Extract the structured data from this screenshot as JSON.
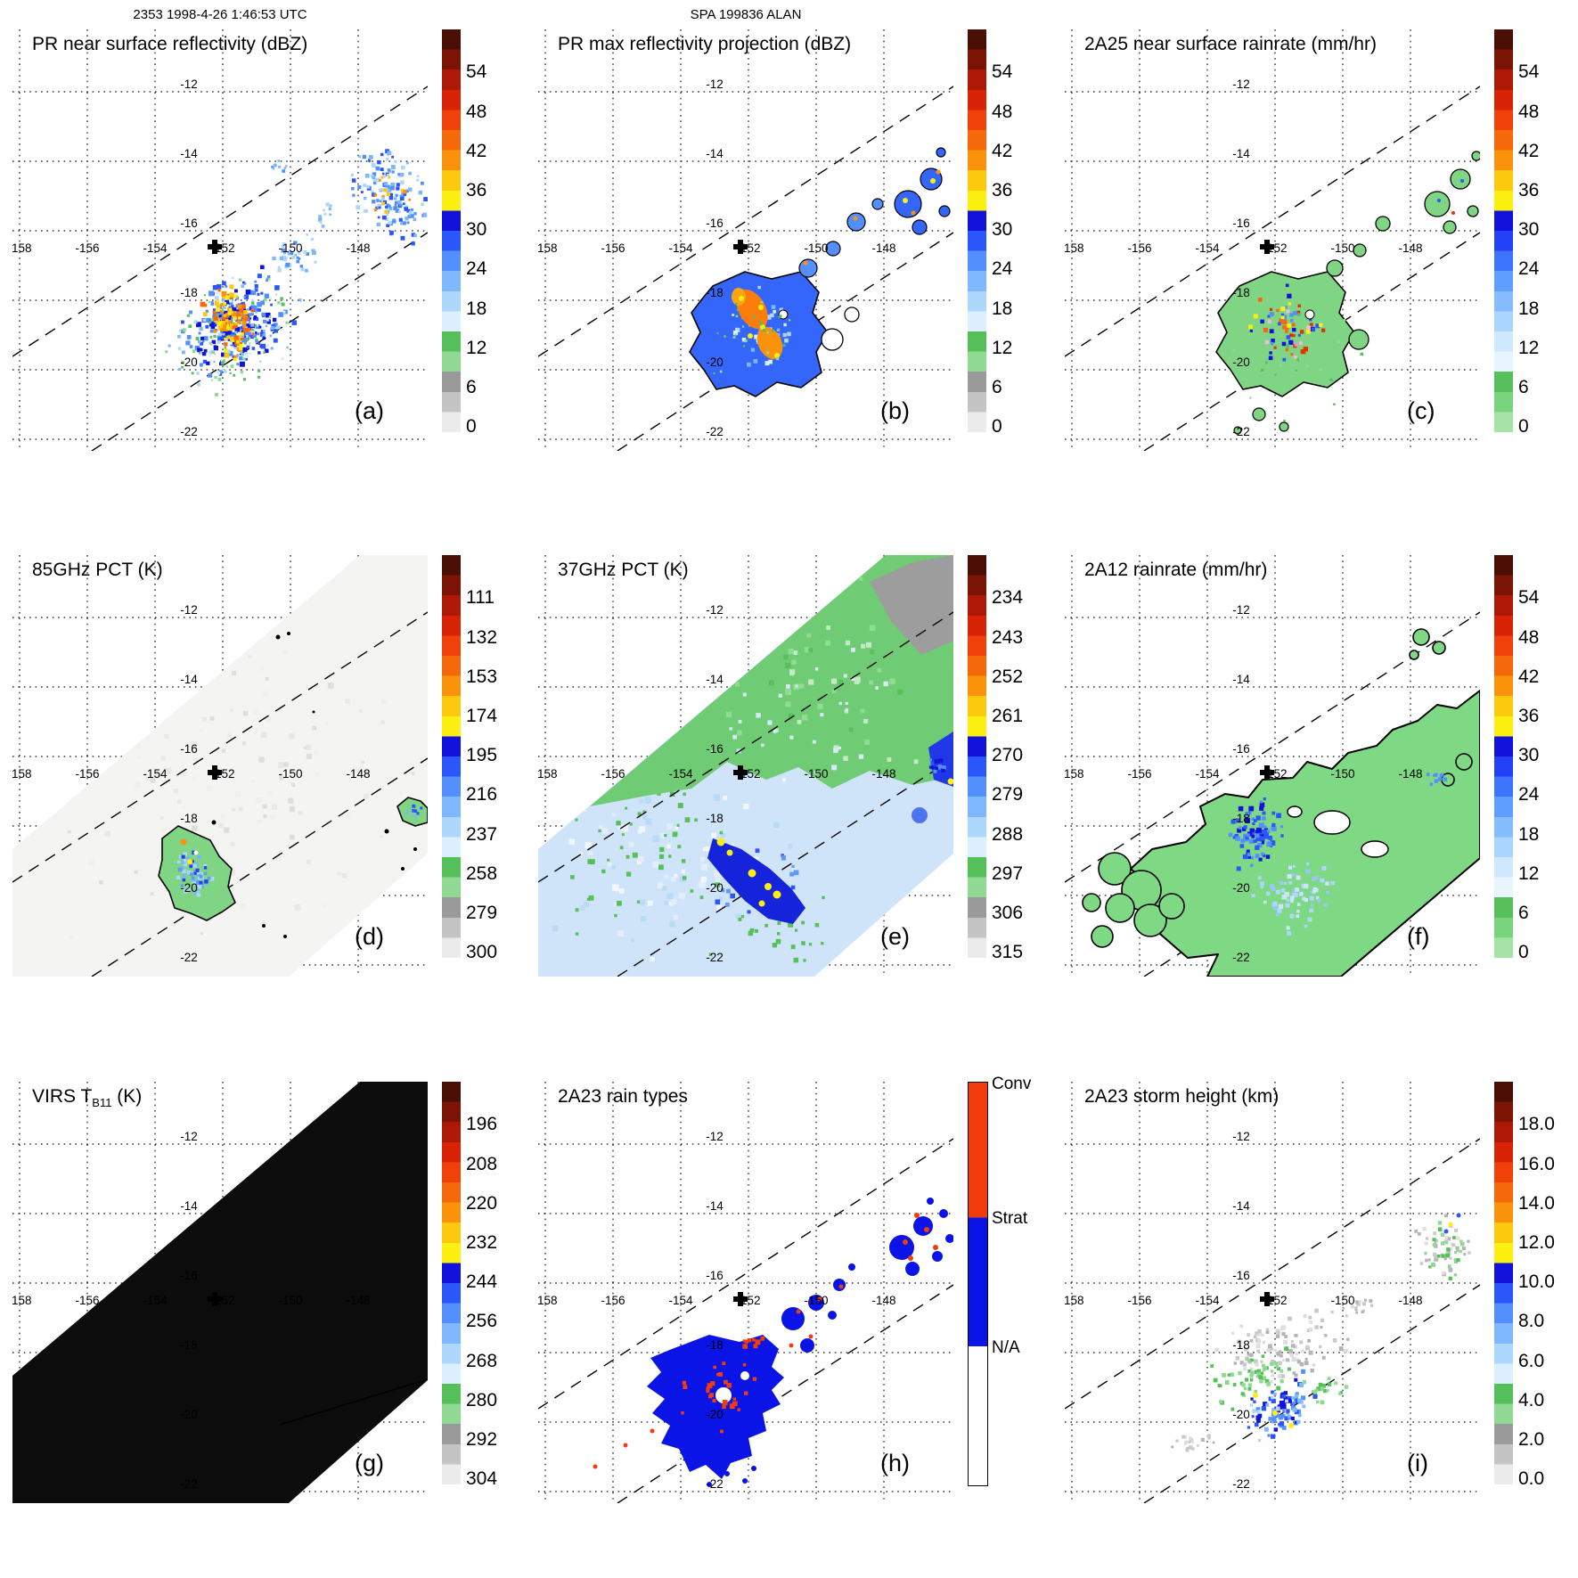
{
  "header": {
    "left_caption": "2353 1998-4-26 1:46:53 UTC",
    "center_caption": "SPA 199836 ALAN"
  },
  "axes": {
    "lon_labels": [
      "-158",
      "-156",
      "-154",
      "-152",
      "-150",
      "-148"
    ],
    "lat_labels": [
      "-12",
      "-14",
      "-16",
      "-18",
      "-20",
      "-22"
    ]
  },
  "palettes": {
    "refl_gray": [
      "#4a0e04",
      "#7c1405",
      "#ad1807",
      "#d92307",
      "#ef4109",
      "#f6690a",
      "#fb920c",
      "#fdc90f",
      "#fdf011",
      "#1113dc",
      "#2b57fa",
      "#548ffe",
      "#7fb8fe",
      "#aed7fe",
      "#dcefff",
      "#55bf59",
      "#8fd992",
      "#9a9a9a",
      "#c4c4c4",
      "#ececec"
    ],
    "rain_green": [
      "#4a0e04",
      "#7c1405",
      "#ad1807",
      "#d92307",
      "#ef4109",
      "#f6690a",
      "#fb920c",
      "#fdc90f",
      "#fdf011",
      "#1113dc",
      "#2342f8",
      "#3d74fe",
      "#5f9dfe",
      "#84bcfe",
      "#a9d6fe",
      "#cfe8fe",
      "#e8f4ff",
      "#57c05b",
      "#79d47d",
      "#a5e3a7"
    ]
  },
  "panels": [
    {
      "id": "a",
      "label": "(a)",
      "title": "PR near surface reflectivity (dBZ)",
      "colorbar": {
        "palette": "refl_gray",
        "ticks": [
          "54",
          "48",
          "42",
          "36",
          "30",
          "24",
          "18",
          "12",
          "6",
          "0"
        ]
      }
    },
    {
      "id": "b",
      "label": "(b)",
      "title": "PR max reflectivity projection (dBZ)",
      "colorbar": {
        "palette": "refl_gray",
        "ticks": [
          "54",
          "48",
          "42",
          "36",
          "30",
          "24",
          "18",
          "12",
          "6",
          "0"
        ]
      }
    },
    {
      "id": "c",
      "label": "(c)",
      "title": "2A25 near surface rainrate (mm/hr)",
      "colorbar": {
        "palette": "rain_green",
        "ticks": [
          "54",
          "48",
          "42",
          "36",
          "30",
          "24",
          "18",
          "12",
          "6",
          "0"
        ]
      }
    },
    {
      "id": "d",
      "label": "(d)",
      "title": "85GHz PCT (K)",
      "colorbar": {
        "palette": "refl_gray",
        "ticks": [
          "111",
          "132",
          "153",
          "174",
          "195",
          "216",
          "237",
          "258",
          "279",
          "300"
        ]
      }
    },
    {
      "id": "e",
      "label": "(e)",
      "title": "37GHz PCT (K)",
      "colorbar": {
        "palette": "refl_gray",
        "ticks": [
          "234",
          "243",
          "252",
          "261",
          "270",
          "279",
          "288",
          "297",
          "306",
          "315"
        ]
      }
    },
    {
      "id": "f",
      "label": "(f)",
      "title": "2A12 rainrate (mm/hr)",
      "colorbar": {
        "palette": "rain_green",
        "ticks": [
          "54",
          "48",
          "42",
          "36",
          "30",
          "24",
          "18",
          "12",
          "6",
          "0"
        ]
      }
    },
    {
      "id": "g",
      "label": "(g)",
      "title_pre": "VIRS T",
      "title_sub": "B11",
      "title_post": " (K)",
      "colorbar": {
        "palette": "refl_gray",
        "ticks": [
          "196",
          "208",
          "220",
          "232",
          "244",
          "256",
          "268",
          "280",
          "292",
          "304"
        ]
      }
    },
    {
      "id": "h",
      "label": "(h)",
      "title": "2A23 rain types",
      "colorbar": {
        "categories": [
          {
            "label": "Conv",
            "color": "#f23c0e",
            "frac": 0.335
          },
          {
            "label": "Strat",
            "color": "#0a14e6",
            "frac": 0.32
          },
          {
            "label": "N/A",
            "color": "#ffffff",
            "frac": 0.345
          }
        ]
      }
    },
    {
      "id": "i",
      "label": "(i)",
      "title": "2A23 storm height (km)",
      "colorbar": {
        "palette": "refl_gray",
        "ticks": [
          "18.0",
          "16.0",
          "14.0",
          "12.0",
          "10.0",
          "8.0",
          "6.0",
          "4.0",
          "2.0",
          "0.0"
        ]
      }
    }
  ],
  "chart_data": [
    {
      "panel": "a",
      "type": "heatmap",
      "title": "PR near surface reflectivity (dBZ)",
      "units": "dBZ",
      "colorbar_ticks": [
        54,
        48,
        42,
        36,
        30,
        24,
        18,
        12,
        6,
        0
      ],
      "lon_ticks": [
        -158,
        -156,
        -154,
        -152,
        -150,
        -148
      ],
      "lat_ticks": [
        -12,
        -14,
        -16,
        -18,
        -20,
        -22
      ],
      "features": "scattered echo cells in SW-NE PR swath between dashed edges; main cell cluster near -151.5,-18.3 with 36-48 dBZ orange/yellow cores in blue 24-33 dBZ field; secondary speckle field near -148,-15.5; bold plus marker near -152.3,-16.4"
    },
    {
      "panel": "b",
      "type": "heatmap",
      "title": "PR max reflectivity projection (dBZ)",
      "units": "dBZ",
      "colorbar_ticks": [
        54,
        48,
        42,
        36,
        30,
        24,
        18,
        12,
        6,
        0
      ],
      "lon_ticks": [
        -158,
        -156,
        -154,
        -152,
        -150,
        -148
      ],
      "lat_ticks": [
        -12,
        -14,
        -16,
        -18,
        -20,
        -22
      ],
      "features": "same storm as (a) but contiguous black-outlined echo region with large 39-48 dBZ orange core near -151.5,-18.3; outlined cell chain toward -148,-15.5"
    },
    {
      "panel": "c",
      "type": "heatmap",
      "title": "2A25 near surface rainrate (mm/hr)",
      "units": "mm/hr",
      "colorbar_ticks": [
        54,
        48,
        42,
        36,
        30,
        24,
        18,
        12,
        6,
        0
      ],
      "lon_ticks": [
        -158,
        -156,
        -154,
        -152,
        -150,
        -148
      ],
      "lat_ticks": [
        -12,
        -14,
        -16,
        -18,
        -20,
        -22
      ],
      "features": "black-outlined light-rain (green <8 mm/hr) area matching (b) with embedded heavy-rain pixels (blue 12-28, red/orange >36 mm/hr); outlined green islands near -148,-15.5"
    },
    {
      "panel": "d",
      "type": "heatmap",
      "title": "85GHz PCT (K)",
      "units": "K",
      "colorbar_ticks": [
        111,
        132,
        153,
        174,
        195,
        216,
        237,
        258,
        279,
        300
      ],
      "lon_ticks": [
        -158,
        -156,
        -154,
        -152,
        -150,
        -148
      ],
      "lat_ticks": [
        -12,
        -14,
        -16,
        -18,
        -20,
        -22
      ],
      "features": "wide TMI swath of warm ~280-300 K (near-white) PCT; black-outlined ice-scattering blob 195-237 K (blue in green rim) near -152.4,-18.5; second depressed-PCT blob at right edge near -147.3,-17.2; PR swath edges dashed"
    },
    {
      "panel": "e",
      "type": "heatmap",
      "title": "37GHz PCT (K)",
      "units": "K",
      "colorbar_ticks": [
        234,
        243,
        252,
        261,
        270,
        279,
        288,
        297,
        306,
        315
      ],
      "lon_ticks": [
        -158,
        -156,
        -154,
        -152,
        -150,
        -148
      ],
      "lat_ticks": [
        -12,
        -14,
        -16,
        -18,
        -20,
        -22
      ],
      "features": "TMI swath split: ~285-291 K green (land-like) NE half, ~279-284 K pale blue SW half, ~297-306 K gray patch NE corner; deep 261-270 K dark-blue band with <261 K yellow minima near -151.6,-18.7; blue patch at right edge near -146.8,-17"
    },
    {
      "panel": "f",
      "type": "heatmap",
      "title": "2A12 rainrate (mm/hr)",
      "units": "mm/hr",
      "colorbar_ticks": [
        54,
        48,
        42,
        36,
        30,
        24,
        18,
        12,
        6,
        0
      ],
      "lon_ticks": [
        -158,
        -156,
        -154,
        -152,
        -150,
        -148
      ],
      "lat_ticks": [
        -12,
        -14,
        -16,
        -18,
        -20,
        -22
      ],
      "features": "widespread black-outlined light rain (green <8 mm/hr) across swath with 12-27 mm/hr blue maxima near -152,-18.3 and pale-blue streaks to the SE; scattered outlined green patches W and NE"
    },
    {
      "panel": "g",
      "type": "heatmap",
      "title": "VIRS TB11 (K)",
      "units": "K",
      "colorbar_ticks": [
        196,
        208,
        220,
        232,
        244,
        256,
        268,
        280,
        292,
        304
      ],
      "lon_ticks": [
        -158,
        -156,
        -154,
        -152,
        -150,
        -148
      ],
      "lat_ticks": [
        -12,
        -14,
        -16,
        -18,
        -20,
        -22
      ],
      "features": "entire VIRS swath rendered uniformly near-black (very cold IR brightness temperature shield); white un-scanned triangles at top-left and bottom-right; thin line from swath edge to right border near -20 latitude"
    },
    {
      "panel": "h",
      "type": "categorical-map",
      "title": "2A23 rain types",
      "categories": [
        "Conv",
        "Strat",
        "N/A"
      ],
      "lon_ticks": [
        -158,
        -156,
        -154,
        -152,
        -150,
        -148
      ],
      "lat_ticks": [
        -12,
        -14,
        -16,
        -18,
        -20,
        -22
      ],
      "features": "large stratiform (blue) rain region near -152,-18.5 with embedded convective (red-orange) pixels; chain of blue/orange cells toward -147.5,-15.3 inside dashed PR swath"
    },
    {
      "panel": "i",
      "type": "heatmap",
      "title": "2A23 storm height (km)",
      "units": "km",
      "colorbar_ticks": [
        18,
        16,
        14,
        12,
        10,
        8,
        6,
        4,
        2,
        0
      ],
      "lon_ticks": [
        -158,
        -156,
        -154,
        -152,
        -150,
        -148
      ],
      "lat_ticks": [
        -12,
        -14,
        -16,
        -18,
        -20,
        -22
      ],
      "features": "storm heights mostly 1-5 km (gray) and 5-7 km (green) with 8-11 km blue cores near -151.8,-18.7 and isolated ~12 km yellow pixels; gray/green speckle cluster near -147.5,-15.5"
    }
  ]
}
